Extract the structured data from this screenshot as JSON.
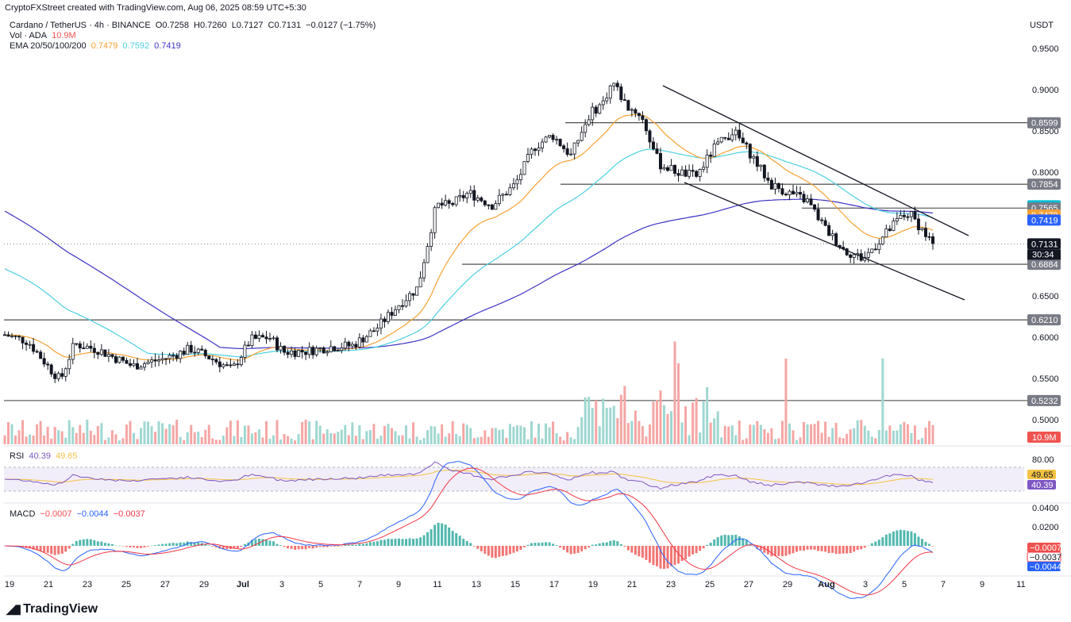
{
  "header": {
    "credit": "CryptoFXStreet created with TradingView.com, Aug 06, 2025 08:59 UTC+5:30",
    "symbol": "Cardano / TetherUS · 4h · BINANCE",
    "ohlc": {
      "open": "O0.7258",
      "high": "H0.7260",
      "low": "L0.7127",
      "close": "C0.7131",
      "change": "−0.0127 (−1.75%)"
    },
    "vol_label": "Vol · ADA",
    "vol_value": "10.9M",
    "ema_label": "EMA 20/50/100/200",
    "ema_values": [
      "0.7479",
      "0.7592",
      "0.7419"
    ],
    "currency": "USDT"
  },
  "colors": {
    "up": "#26a69a",
    "down": "#ef5350",
    "ema20": "#f7a133",
    "ema50": "#4dd0e1",
    "ema200": "#3d33c4",
    "rsi": "#7e57c2",
    "rsi_ma": "#f5c242",
    "macd": "#2962ff",
    "signal": "#f23645"
  },
  "price_axis": {
    "labels": [
      "0.9500",
      "0.9000",
      "0.8500",
      "0.8000",
      "0.7500",
      "0.7000",
      "0.6500",
      "0.6000",
      "0.5500",
      "0.5000"
    ],
    "tags": [
      {
        "text": "0.8599",
        "value": 0.8599,
        "bg": "#787b86",
        "fg": "#ffffff"
      },
      {
        "text": "0.7854",
        "value": 0.7854,
        "bg": "#787b86",
        "fg": "#ffffff"
      },
      {
        "text": "0.7592",
        "value": 0.7592,
        "bg": "#00bcd4",
        "fg": "#ffffff"
      },
      {
        "text": "0.7565",
        "value": 0.7565,
        "bg": "#787b86",
        "fg": "#ffffff"
      },
      {
        "text": "0.7479",
        "value": 0.7479,
        "bg": "#f7a133",
        "fg": "#ffffff"
      },
      {
        "text": "0.7419",
        "value": 0.7419,
        "bg": "#2962ff",
        "fg": "#ffffff"
      },
      {
        "text": "0.7131",
        "value": 0.7131,
        "bg": "#131722",
        "fg": "#ffffff"
      },
      {
        "text": "0.6884",
        "value": 0.6884,
        "bg": "#787b86",
        "fg": "#ffffff"
      },
      {
        "text": "0.6210",
        "value": 0.621,
        "bg": "#787b86",
        "fg": "#ffffff"
      },
      {
        "text": "0.5232",
        "value": 0.5232,
        "bg": "#787b86",
        "fg": "#ffffff"
      }
    ],
    "countdown": "30:34",
    "volume_tag": "10.9M"
  },
  "levels": [
    0.8599,
    0.7854,
    0.7565,
    0.6884,
    0.621,
    0.5232
  ],
  "rsi": {
    "label": "RSI",
    "value": "40.39",
    "ma": "49.65",
    "axis_label": "80.00"
  },
  "macd": {
    "label": "MACD",
    "hist": "−0.0007",
    "macd": "−0.0044",
    "signal": "−0.0037",
    "axis_labels": [
      "0.0400",
      "0.0200"
    ],
    "tags": [
      "−0.0007",
      "−0.0037",
      "−0.0044"
    ]
  },
  "time_axis": [
    "19",
    "21",
    "23",
    "25",
    "27",
    "29",
    "Jul",
    "3",
    "5",
    "7",
    "9",
    "11",
    "13",
    "15",
    "17",
    "19",
    "21",
    "23",
    "25",
    "27",
    "29",
    "Aug",
    "3",
    "5",
    "7",
    "9",
    "11"
  ],
  "footer": {
    "brand": "TradingView"
  }
}
